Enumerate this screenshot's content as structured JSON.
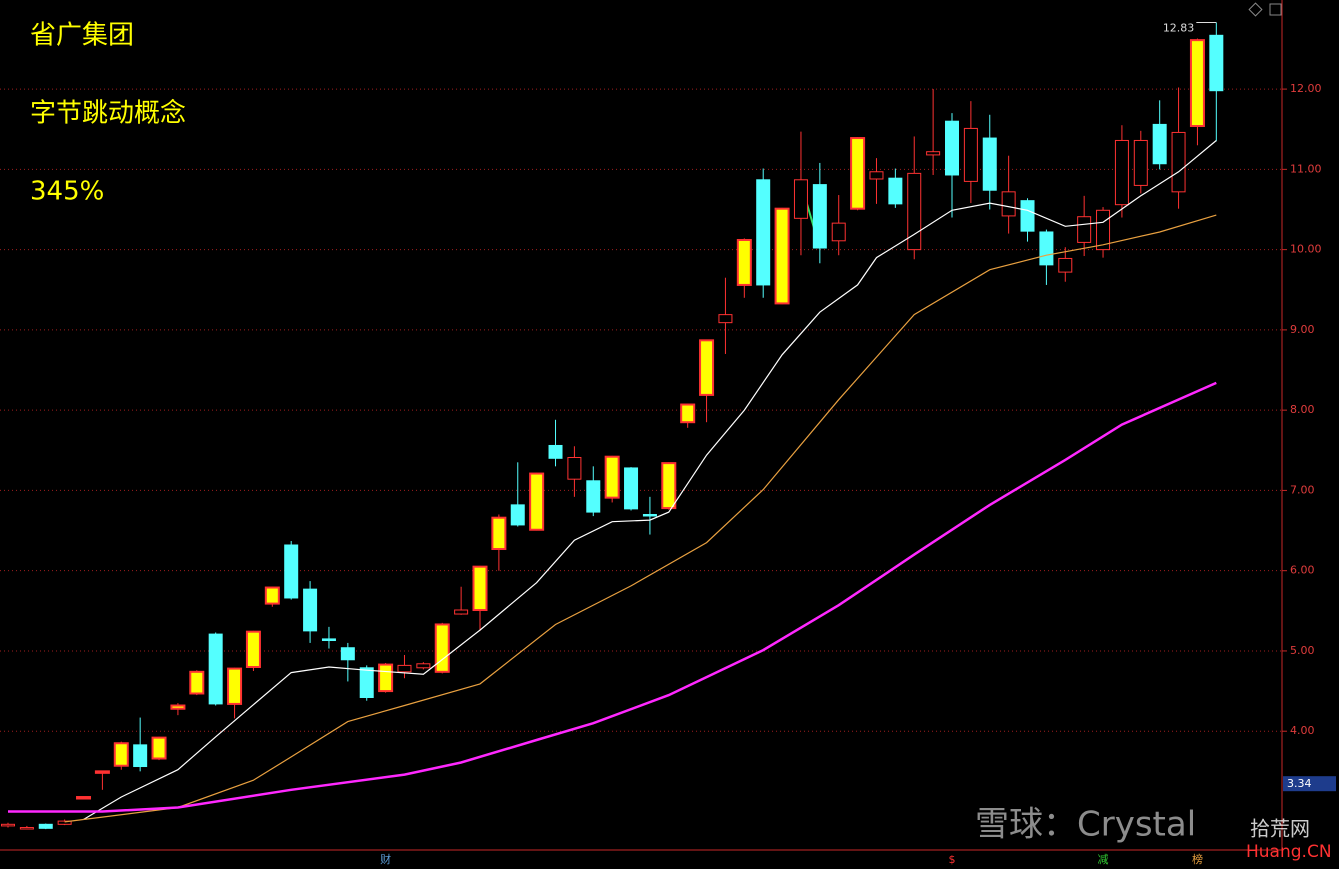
{
  "chart_data": {
    "type": "candlestick",
    "title": "省广集团",
    "subtitle": "字节跳动概念",
    "annotation": "345%",
    "open": [
      2.82,
      2.8,
      2.84,
      2.84,
      3.18,
      3.49,
      3.57,
      3.83,
      3.66,
      4.28,
      4.47,
      5.21,
      4.34,
      4.8,
      5.59,
      6.32,
      5.77,
      5.15,
      5.04,
      4.79,
      4.5,
      4.74,
      4.79,
      4.74,
      5.46,
      5.51,
      6.27,
      6.82,
      6.51,
      7.56,
      7.14,
      7.12,
      6.91,
      7.28,
      6.7,
      6.78,
      7.85,
      8.19,
      9.09,
      9.56,
      10.87,
      9.33,
      10.39,
      10.81,
      10.11,
      10.51,
      10.88,
      10.89,
      10.0,
      11.18,
      11.6,
      10.85,
      11.39,
      10.42,
      10.61,
      10.22,
      9.72,
      10.09,
      10.0,
      10.56,
      10.8,
      11.56,
      10.72,
      11.54,
      12.67
    ],
    "high": [
      2.86,
      2.82,
      2.85,
      2.9,
      3.18,
      3.5,
      3.87,
      4.17,
      3.93,
      4.35,
      4.76,
      5.23,
      4.79,
      5.25,
      5.8,
      6.37,
      5.87,
      5.3,
      5.1,
      4.82,
      4.85,
      4.95,
      4.86,
      5.35,
      5.8,
      6.06,
      6.7,
      7.35,
      7.22,
      7.88,
      7.55,
      7.3,
      7.43,
      7.29,
      6.92,
      7.35,
      8.08,
      8.88,
      9.65,
      10.14,
      11.01,
      10.52,
      11.47,
      11.08,
      10.68,
      11.4,
      11.14,
      11.01,
      11.41,
      12.0,
      11.7,
      11.85,
      11.68,
      11.17,
      10.64,
      10.25,
      10.03,
      10.67,
      10.53,
      11.55,
      11.48,
      11.86,
      12.02,
      12.63,
      12.83
    ],
    "low": [
      2.8,
      2.78,
      2.78,
      2.83,
      3.18,
      3.27,
      3.52,
      3.5,
      3.64,
      4.2,
      4.45,
      4.32,
      4.16,
      4.75,
      5.55,
      5.64,
      5.1,
      5.03,
      4.62,
      4.38,
      4.48,
      4.66,
      4.77,
      4.72,
      5.45,
      5.25,
      6.0,
      6.55,
      6.5,
      7.3,
      6.92,
      6.68,
      6.85,
      6.75,
      6.45,
      6.76,
      7.78,
      7.85,
      8.7,
      9.4,
      9.4,
      9.32,
      9.93,
      9.83,
      9.93,
      10.49,
      10.57,
      10.52,
      9.88,
      10.93,
      10.4,
      10.58,
      10.5,
      10.2,
      10.1,
      9.56,
      9.6,
      9.92,
      9.9,
      10.4,
      10.7,
      11.0,
      10.51,
      11.3,
      11.35
    ],
    "close": [
      2.84,
      2.8,
      2.79,
      2.88,
      3.18,
      3.5,
      3.85,
      3.56,
      3.92,
      4.32,
      4.74,
      4.34,
      4.78,
      5.24,
      5.79,
      5.66,
      5.25,
      5.13,
      4.89,
      4.42,
      4.83,
      4.82,
      4.84,
      5.33,
      5.51,
      6.05,
      6.66,
      6.57,
      7.21,
      7.4,
      7.41,
      6.73,
      7.42,
      6.77,
      6.69,
      7.34,
      8.07,
      8.87,
      9.19,
      10.12,
      9.56,
      10.51,
      10.87,
      10.02,
      10.33,
      11.39,
      10.97,
      10.57,
      10.95,
      11.22,
      10.93,
      11.51,
      10.74,
      10.72,
      10.23,
      9.81,
      9.89,
      10.41,
      10.49,
      11.36,
      11.36,
      11.07,
      11.46,
      12.61,
      11.98
    ],
    "up_color": "#ff3232",
    "up_fill": "#ffff00",
    "down_color": "#54ffff",
    "filled_up": [
      4,
      5,
      6,
      8,
      9,
      10,
      12,
      13,
      14,
      20,
      23,
      25,
      26,
      28,
      32,
      35,
      36,
      37,
      39,
      41,
      45,
      63
    ],
    "lines": [
      {
        "color": "#ffffff",
        "x": [
          4,
          6,
          9,
          11,
          13,
          15,
          17,
          19,
          22,
          25,
          28,
          30,
          32,
          34,
          35,
          37,
          39,
          41,
          43,
          45,
          46,
          48,
          50,
          52,
          54,
          56,
          58,
          60,
          62,
          64
        ],
        "values": [
          2.9,
          3.18,
          3.52,
          3.93,
          4.33,
          4.73,
          4.8,
          4.76,
          4.71,
          5.26,
          5.85,
          6.38,
          6.61,
          6.63,
          6.73,
          7.44,
          8.0,
          8.69,
          9.22,
          9.56,
          9.9,
          10.19,
          10.49,
          10.58,
          10.49,
          10.29,
          10.34,
          10.67,
          10.97,
          11.36
        ]
      },
      {
        "color": "#e8a040",
        "x": [
          3,
          9,
          13,
          15,
          18,
          21,
          25,
          29,
          33,
          37,
          40,
          44,
          48,
          52,
          55,
          58,
          61,
          64
        ],
        "values": [
          2.87,
          3.05,
          3.39,
          3.68,
          4.12,
          4.32,
          4.59,
          5.33,
          5.81,
          6.35,
          7.01,
          8.13,
          9.19,
          9.75,
          9.93,
          10.06,
          10.22,
          10.43
        ]
      },
      {
        "color": "#ff28ff",
        "x": [
          0,
          5,
          9,
          15,
          21,
          24,
          28,
          31,
          35,
          40,
          44,
          48,
          52,
          56,
          59,
          64
        ],
        "values": [
          3.0,
          3.0,
          3.05,
          3.27,
          3.46,
          3.61,
          3.89,
          4.1,
          4.45,
          5.01,
          5.57,
          6.2,
          6.82,
          7.38,
          7.82,
          8.34
        ]
      }
    ],
    "ylim": [
      2.52,
      13.11
    ],
    "yticks": [
      {
        "value": 4,
        "label": "4.00"
      },
      {
        "value": 5,
        "label": "5.00"
      },
      {
        "value": 6,
        "label": "6.00"
      },
      {
        "value": 7,
        "label": "7.00"
      },
      {
        "value": 8,
        "label": "8.00"
      },
      {
        "value": 9,
        "label": "9.00"
      },
      {
        "value": 10,
        "label": "10.00"
      },
      {
        "value": 11,
        "label": "11.00"
      },
      {
        "value": 12,
        "label": "12.00"
      }
    ],
    "grid": true,
    "max_price": 12.83,
    "cursor_price": 3.34,
    "events": [
      {
        "label": "财",
        "index": 20,
        "color": "#5a9bd5"
      },
      {
        "label": "$",
        "index": 50,
        "color": "#ff3232"
      },
      {
        "label": "减",
        "index": 58,
        "color": "#32c832"
      },
      {
        "label": "榜",
        "index": 63,
        "color": "#e8a040"
      }
    ],
    "watermark": [
      "雪球：Crystal",
      "拾荒网",
      "Huang.CN"
    ]
  }
}
